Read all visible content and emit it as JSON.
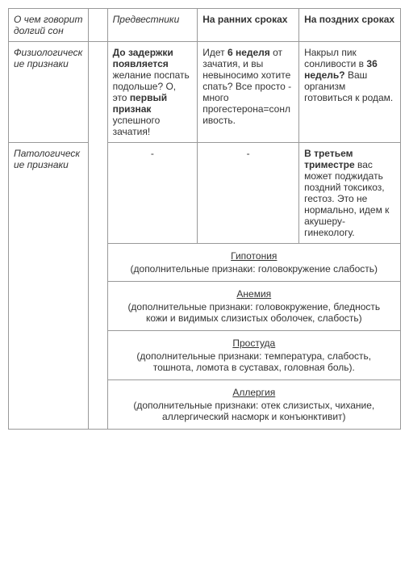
{
  "headers": {
    "c1": "О чем говорит долгий сон",
    "c2": "",
    "c3": "Предвестники",
    "c4": "На ранних сроках",
    "c5": "На поздних сроках"
  },
  "row_phys": {
    "label": "Физиологические признаки",
    "c3_pre1": "До задержки появляется",
    "c3_mid": " желание поспать подольше?\nО, это ",
    "c3_bold2": "первый признак",
    "c3_end": " успешного зачатия!",
    "c4_pre": "Идет ",
    "c4_bold": "6 неделя",
    "c4_end": " от зачатия, и вы невыносимо хотите спать? Все просто - много прогестерона=сонливость.",
    "c5_pre": "Накрыл пик сонливости в ",
    "c5_bold": "36 недель?",
    "c5_end": " Ваш организм готовиться к родам."
  },
  "row_path": {
    "label": "Патологические признаки",
    "c3": "-",
    "c4": "-",
    "c5_bold": "В третьем триместре",
    "c5_end": " вас может поджидать поздний токсикоз, гестоз. Это не нормально, идем к акушеру-гинекологу."
  },
  "sections": {
    "s1_title": "Гипотония",
    "s1_body": "(дополнительные признаки: головокружение слабость)",
    "s2_title": "Анемия",
    "s2_body": "(дополнительные признаки: головокружение, бледность кожи и видимых слизистых оболочек, слабость)",
    "s3_title": "Простуда",
    "s3_body": "(дополнительные признаки: температура, слабость, тошнота, ломота в суставах, головная боль).",
    "s4_title": "Аллергия",
    "s4_body": "(дополнительные признаки: отек слизистых, чихание, аллергический насморк и конъюнктивит)"
  }
}
